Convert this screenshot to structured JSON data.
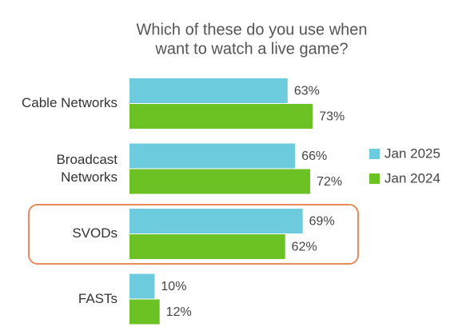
{
  "chart_data": {
    "type": "bar",
    "orientation": "horizontal",
    "title": [
      "Which of these do you use when",
      "want to watch a live game?"
    ],
    "categories": [
      "Cable Networks",
      "Broadcast Networks",
      "SVODs",
      "FASTs"
    ],
    "series": [
      {
        "name": "Jan 2025",
        "color": "#6ccbdc",
        "values": [
          63,
          66,
          69,
          10
        ],
        "value_labels": [
          "63%",
          "66%",
          "69%",
          "10%"
        ]
      },
      {
        "name": "Jan 2024",
        "color": "#6cc124",
        "values": [
          73,
          72,
          62,
          12
        ],
        "value_labels": [
          "73%",
          "72%",
          "62%",
          "12%"
        ]
      }
    ],
    "legend": "right"
  }
}
